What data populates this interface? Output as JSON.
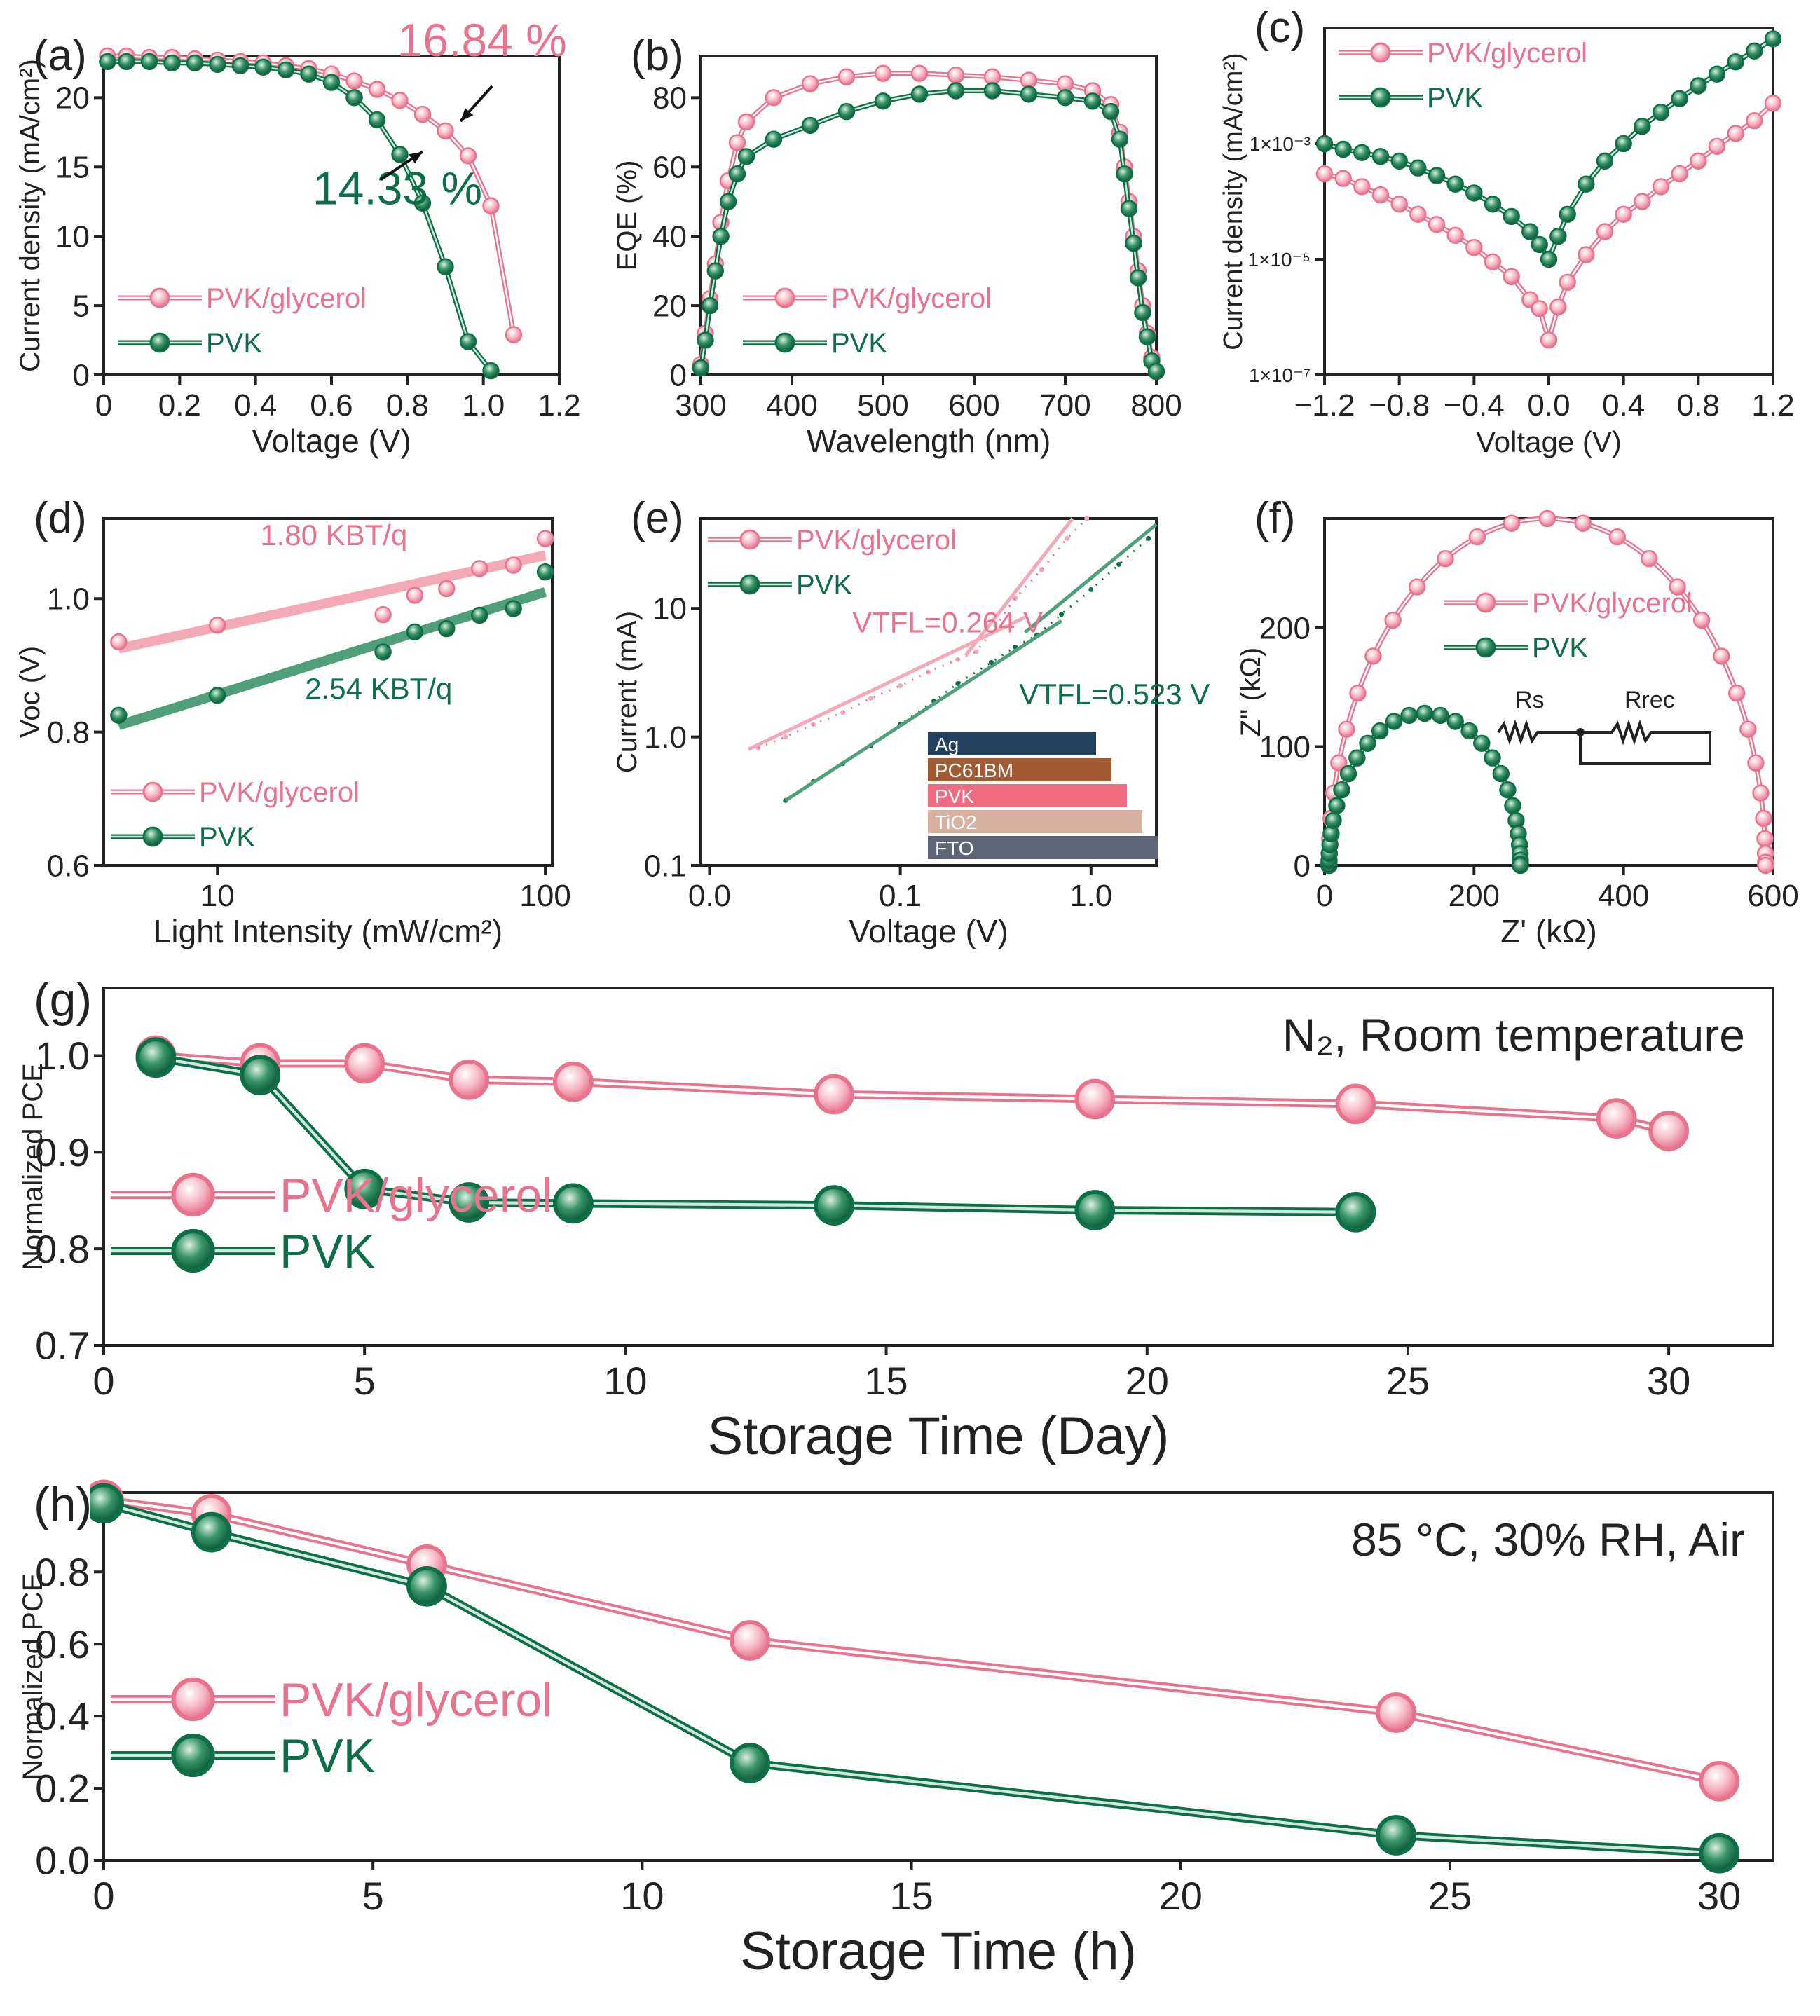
{
  "colors": {
    "glycerol": "#e9728d",
    "glycerol_fill": "#f6b9c6",
    "pvk": "#0e6e47",
    "pvk_fill": "#5aa982",
    "axis": "#222222",
    "fit_glycerol": "#f4a9b7",
    "fit_pvk": "#4fa07a"
  },
  "chart_data": [
    {
      "id": "a",
      "panel_label": "(a)",
      "type": "line",
      "xlabel": "Voltage (V)",
      "ylabel": "Current density (mA/cm²)",
      "xlim": [
        0,
        1.2
      ],
      "ylim": [
        0,
        23
      ],
      "xticks": [
        0,
        0.2,
        0.4,
        0.6,
        0.8,
        1.0,
        1.2
      ],
      "xtick_labels": [
        "0",
        "0.2",
        "0.4",
        "0.6",
        "0.8",
        "1.0",
        "1.2"
      ],
      "yticks": [
        0,
        5,
        10,
        15,
        20
      ],
      "ytick_labels": [
        "0",
        "5",
        "10",
        "15",
        "20"
      ],
      "legend": [
        "PVK/glycerol",
        "PVK"
      ],
      "annotations": [
        {
          "text": "16.84 %",
          "series": 0,
          "x": 1.22,
          "y": 23,
          "arrow_to": [
            0.94,
            18.3
          ]
        },
        {
          "text": "14.33 %",
          "series": 1,
          "x": 0.55,
          "y": 12.3,
          "arrow_to": [
            0.84,
            16.1
          ]
        }
      ],
      "series": [
        {
          "name": "PVK/glycerol",
          "x": [
            0.01,
            0.06,
            0.12,
            0.18,
            0.24,
            0.3,
            0.36,
            0.42,
            0.48,
            0.54,
            0.6,
            0.66,
            0.72,
            0.78,
            0.84,
            0.9,
            0.96,
            1.02,
            1.08
          ],
          "y": [
            23.0,
            23.0,
            22.9,
            22.9,
            22.8,
            22.7,
            22.6,
            22.5,
            22.3,
            22.1,
            21.7,
            21.2,
            20.6,
            19.8,
            18.8,
            17.6,
            15.8,
            12.2,
            2.9
          ]
        },
        {
          "name": "PVK",
          "x": [
            0.01,
            0.06,
            0.12,
            0.18,
            0.24,
            0.3,
            0.36,
            0.42,
            0.48,
            0.54,
            0.6,
            0.66,
            0.72,
            0.78,
            0.84,
            0.9,
            0.96,
            1.02
          ],
          "y": [
            22.6,
            22.6,
            22.6,
            22.5,
            22.5,
            22.4,
            22.3,
            22.2,
            22.0,
            21.7,
            21.1,
            20.0,
            18.4,
            15.9,
            12.4,
            7.8,
            2.4,
            0.3
          ]
        }
      ]
    },
    {
      "id": "b",
      "panel_label": "(b)",
      "type": "line",
      "xlabel": "Wavelength (nm)",
      "ylabel": "EQE (%)",
      "xlim": [
        300,
        800
      ],
      "ylim": [
        0,
        92
      ],
      "xticks": [
        300,
        400,
        500,
        600,
        700,
        800
      ],
      "xtick_labels": [
        "300",
        "400",
        "500",
        "600",
        "700",
        "800"
      ],
      "yticks": [
        0,
        20,
        40,
        60,
        80
      ],
      "ytick_labels": [
        "0",
        "20",
        "40",
        "60",
        "80"
      ],
      "legend": [
        "PVK/glycerol",
        "PVK"
      ],
      "series": [
        {
          "name": "PVK/glycerol",
          "x": [
            300,
            305,
            310,
            316,
            322,
            330,
            340,
            350,
            380,
            420,
            460,
            500,
            540,
            580,
            620,
            660,
            700,
            730,
            750,
            760,
            765,
            770,
            775,
            780,
            785,
            790,
            795,
            800
          ],
          "y": [
            3,
            12,
            22,
            32,
            44,
            56,
            67,
            73,
            80,
            84,
            86,
            87,
            87,
            86.5,
            86,
            85,
            84,
            82,
            78,
            70,
            60,
            50,
            40,
            30,
            20,
            12,
            5,
            1
          ]
        },
        {
          "name": "PVK",
          "x": [
            300,
            305,
            310,
            316,
            322,
            330,
            340,
            350,
            380,
            420,
            460,
            500,
            540,
            580,
            620,
            660,
            700,
            730,
            750,
            760,
            765,
            770,
            775,
            780,
            785,
            790,
            795,
            800
          ],
          "y": [
            2,
            10,
            20,
            30,
            40,
            50,
            58,
            63,
            68,
            72,
            76,
            79,
            81,
            82,
            82,
            81,
            80,
            79,
            76,
            68,
            58,
            48,
            38,
            28,
            18,
            11,
            4,
            1
          ]
        }
      ]
    },
    {
      "id": "c",
      "panel_label": "(c)",
      "type": "line",
      "xlabel": "Voltage (V)",
      "ylabel": "Current density (mA/cm²)",
      "yscale": "log",
      "xlim": [
        -1.2,
        1.2
      ],
      "ylim": [
        1e-07,
        0.1
      ],
      "xticks": [
        -1.2,
        -0.8,
        -0.4,
        0.0,
        0.4,
        0.8,
        1.2
      ],
      "xtick_labels": [
        "−1.2",
        "−0.8",
        "−0.4",
        "0.0",
        "0.4",
        "0.8",
        "1.2"
      ],
      "yticks": [
        1e-07,
        1e-05,
        0.001
      ],
      "ytick_labels": [
        "1×10⁻⁷",
        "1×10⁻⁵",
        "1×10⁻³"
      ],
      "legend": [
        "PVK/glycerol",
        "PVK"
      ],
      "series": [
        {
          "name": "PVK/glycerol",
          "x": [
            -1.2,
            -1.1,
            -1.0,
            -0.9,
            -0.8,
            -0.7,
            -0.6,
            -0.5,
            -0.4,
            -0.3,
            -0.2,
            -0.1,
            -0.05,
            0.0,
            0.05,
            0.1,
            0.2,
            0.3,
            0.4,
            0.5,
            0.6,
            0.7,
            0.8,
            0.9,
            1.0,
            1.1,
            1.2
          ],
          "y": [
            0.0003,
            0.00025,
            0.00018,
            0.00013,
            9e-05,
            6e-05,
            4e-05,
            2.6e-05,
            1.6e-05,
            9e-06,
            5e-06,
            2e-06,
            1.4e-06,
            4e-07,
            1.5e-06,
            4e-06,
            1.2e-05,
            3e-05,
            6e-05,
            0.0001,
            0.00018,
            0.0003,
            0.0005,
            0.0009,
            0.0015,
            0.0025,
            0.005
          ]
        },
        {
          "name": "PVK",
          "x": [
            -1.2,
            -1.1,
            -1.0,
            -0.9,
            -0.8,
            -0.7,
            -0.6,
            -0.5,
            -0.4,
            -0.3,
            -0.2,
            -0.1,
            -0.05,
            0.0,
            0.05,
            0.1,
            0.2,
            0.3,
            0.4,
            0.5,
            0.6,
            0.7,
            0.8,
            0.9,
            1.0,
            1.1,
            1.2
          ],
          "y": [
            0.001,
            0.0008,
            0.0007,
            0.0006,
            0.0005,
            0.00038,
            0.00028,
            0.0002,
            0.00014,
            9e-05,
            5.5e-05,
            3e-05,
            1.8e-05,
            1e-05,
            2.5e-05,
            6e-05,
            0.0002,
            0.0005,
            0.001,
            0.002,
            0.0035,
            0.006,
            0.01,
            0.016,
            0.026,
            0.04,
            0.065
          ]
        }
      ]
    },
    {
      "id": "d",
      "panel_label": "(d)",
      "type": "scatter",
      "xlabel": "Light Intensity (mW/cm²)",
      "ylabel": "Voc (V)",
      "xscale": "log",
      "xlim": [
        4.5,
        105
      ],
      "ylim": [
        0.6,
        1.12
      ],
      "xticks": [
        10,
        100
      ],
      "xtick_labels": [
        "10",
        "100"
      ],
      "yticks": [
        0.6,
        0.8,
        1.0
      ],
      "ytick_labels": [
        "0.6",
        "0.8",
        "1.0"
      ],
      "legend": [
        "PVK/glycerol",
        "PVK"
      ],
      "annotations": [
        {
          "text": "1.80 KBT/q",
          "series": 0,
          "x": 13.5,
          "y": 1.08
        },
        {
          "text": "2.54 KBT/q",
          "series": 1,
          "x": 18.5,
          "y": 0.85
        }
      ],
      "series": [
        {
          "name": "PVK/glycerol",
          "x": [
            5,
            10,
            32,
            40,
            50,
            63,
            80,
            100
          ],
          "y": [
            0.935,
            0.96,
            0.976,
            1.005,
            1.015,
            1.045,
            1.05,
            1.09
          ],
          "fit": {
            "x": [
              5,
              100
            ],
            "y": [
              0.925,
              1.065
            ]
          }
        },
        {
          "name": "PVK",
          "x": [
            5,
            10,
            32,
            40,
            50,
            63,
            80,
            100
          ],
          "y": [
            0.825,
            0.855,
            0.92,
            0.95,
            0.955,
            0.975,
            0.985,
            1.04
          ],
          "fit": {
            "x": [
              5,
              100
            ],
            "y": [
              0.81,
              1.01
            ]
          }
        }
      ]
    },
    {
      "id": "e",
      "panel_label": "(e)",
      "type": "line",
      "xlabel": "Voltage (V)",
      "ylabel": "Current (mA)",
      "xscale": "log",
      "yscale": "log",
      "xlim": [
        0.009,
        2.2
      ],
      "ylim": [
        0.1,
        50
      ],
      "xticks": [
        0.01,
        0.1,
        1
      ],
      "xtick_labels": [
        "0.0",
        "0.1",
        "1.0"
      ],
      "yticks": [
        0.1,
        1,
        10
      ],
      "ytick_labels": [
        "0.1",
        "1.0",
        "10"
      ],
      "legend": [
        "PVK/glycerol",
        "PVK"
      ],
      "annotations": [
        {
          "text": "VTFL=0.264 V",
          "series": 0,
          "x": 0.056,
          "y": 6.5
        },
        {
          "text": "VTFL=0.523 V",
          "series": 1,
          "x": 0.42,
          "y": 1.8
        }
      ],
      "inset_layers": [
        "Ag",
        "PC61BM",
        "PVK",
        "TiO2",
        "FTO"
      ],
      "series": [
        {
          "name": "PVK/glycerol",
          "x": [
            0.018,
            0.025,
            0.035,
            0.05,
            0.07,
            0.1,
            0.14,
            0.2,
            0.25,
            0.3,
            0.4,
            0.55,
            0.75,
            0.95
          ],
          "y": [
            0.82,
            1.0,
            1.25,
            1.55,
            2.0,
            2.5,
            3.2,
            4.0,
            4.6,
            6.5,
            12,
            20,
            35,
            50
          ]
        },
        {
          "name": "PVK",
          "x": [
            0.025,
            0.035,
            0.05,
            0.07,
            0.1,
            0.15,
            0.2,
            0.3,
            0.4,
            0.52,
            0.7,
            1.0,
            1.4,
            2.0
          ],
          "y": [
            0.32,
            0.45,
            0.62,
            0.85,
            1.25,
            1.9,
            2.6,
            3.8,
            5.0,
            6.2,
            9,
            14,
            22,
            35
          ]
        }
      ]
    },
    {
      "id": "f",
      "panel_label": "(f)",
      "type": "scatter",
      "xlabel": "Z' (kΩ)",
      "ylabel": "Z'' (kΩ)",
      "xlim": [
        0,
        600
      ],
      "ylim": [
        0,
        292
      ],
      "xticks": [
        0,
        200,
        400,
        600
      ],
      "xtick_labels": [
        "0",
        "200",
        "400",
        "600"
      ],
      "yticks": [
        0,
        100,
        200
      ],
      "ytick_labels": [
        "0",
        "100",
        "200"
      ],
      "legend": [
        "PVK/glycerol",
        "PVK"
      ],
      "circuit_labels": [
        "Rs",
        "Rrec"
      ],
      "series": [
        {
          "name": "PVK/glycerol",
          "semicircle": {
            "r_start": 6,
            "r_end": 590,
            "radius": 292
          }
        },
        {
          "name": "PVK",
          "semicircle": {
            "r_start": 6,
            "r_end": 262,
            "radius": 134
          }
        }
      ]
    },
    {
      "id": "g",
      "panel_label": "(g)",
      "type": "line",
      "xlabel": "Storage Time (Day)",
      "ylabel": "Normalized PCE",
      "xlim": [
        0,
        32
      ],
      "ylim": [
        0.7,
        1.07
      ],
      "xticks": [
        0,
        5,
        10,
        15,
        20,
        25,
        30
      ],
      "xtick_labels": [
        "0",
        "5",
        "10",
        "15",
        "20",
        "25",
        "30"
      ],
      "yticks": [
        0.7,
        0.8,
        0.9,
        1.0
      ],
      "ytick_labels": [
        "0.7",
        "0.8",
        "0.9",
        "1.0"
      ],
      "condition": "N₂, Room temperature",
      "legend": [
        "PVK/glycerol",
        "PVK"
      ],
      "series": [
        {
          "name": "PVK/glycerol",
          "x": [
            1,
            3,
            5,
            7,
            9,
            14,
            19,
            24,
            29,
            30
          ],
          "y": [
            1.0,
            0.992,
            0.992,
            0.975,
            0.973,
            0.96,
            0.955,
            0.95,
            0.935,
            0.922
          ]
        },
        {
          "name": "PVK",
          "x": [
            1,
            3,
            5,
            7,
            9,
            14,
            19,
            24
          ],
          "y": [
            0.998,
            0.98,
            0.862,
            0.848,
            0.847,
            0.845,
            0.84,
            0.838
          ]
        }
      ]
    },
    {
      "id": "h",
      "panel_label": "(h)",
      "type": "line",
      "xlabel": "Storage Time (h)",
      "ylabel": "Normalized PCE",
      "xlim": [
        0,
        31
      ],
      "ylim": [
        0,
        1.02
      ],
      "xticks": [
        0,
        5,
        10,
        15,
        20,
        25,
        30
      ],
      "xtick_labels": [
        "0",
        "5",
        "10",
        "15",
        "20",
        "25",
        "30"
      ],
      "yticks": [
        0.0,
        0.2,
        0.4,
        0.6,
        0.8
      ],
      "ytick_labels": [
        "0.0",
        "0.2",
        "0.4",
        "0.6",
        "0.8"
      ],
      "condition": "85 °C, 30% RH, Air",
      "legend": [
        "PVK/glycerol",
        "PVK"
      ],
      "series": [
        {
          "name": "PVK/glycerol",
          "x": [
            0,
            2,
            6,
            12,
            24,
            30
          ],
          "y": [
            1.0,
            0.96,
            0.82,
            0.61,
            0.41,
            0.22
          ]
        },
        {
          "name": "PVK",
          "x": [
            0,
            2,
            6,
            12,
            24,
            30
          ],
          "y": [
            0.99,
            0.91,
            0.76,
            0.27,
            0.07,
            0.02
          ]
        }
      ]
    }
  ]
}
